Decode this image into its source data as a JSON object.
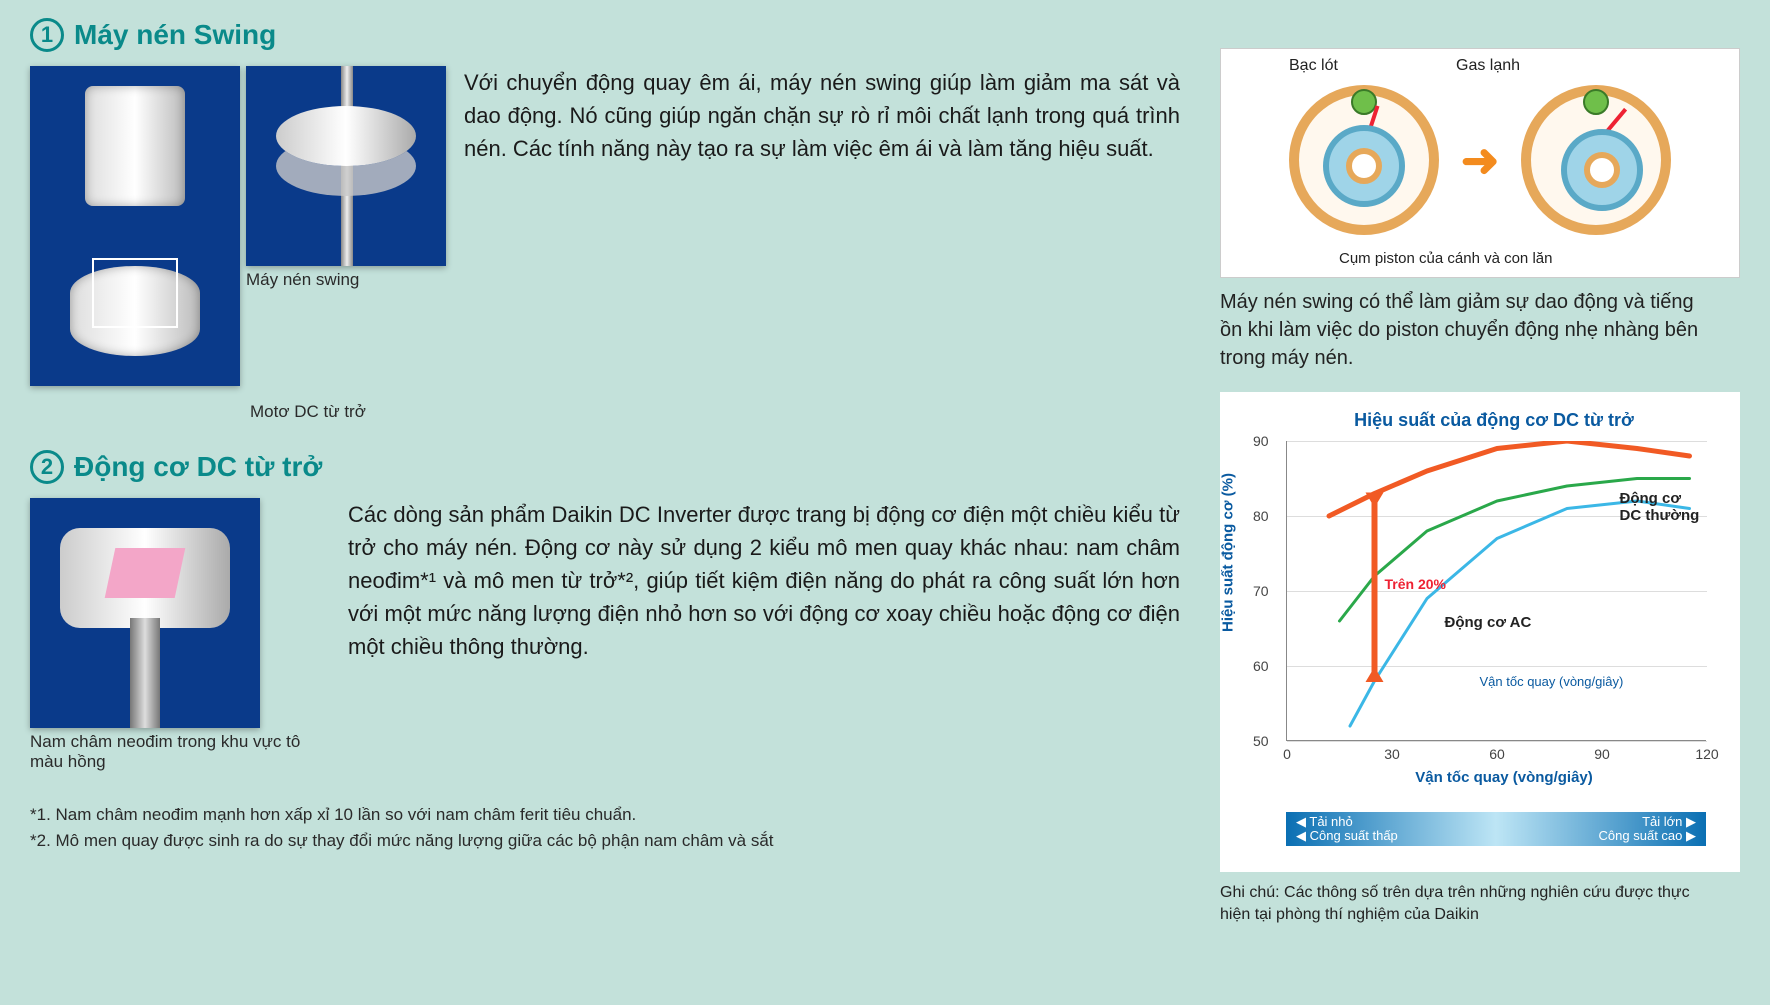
{
  "colors": {
    "page_bg": "#c3e1da",
    "teal": "#0a8a8a",
    "body_text": "#1a1a1a",
    "chart_blue": "#0a5aa0",
    "orange_series": "#f15a24",
    "green_series": "#2aa84a",
    "cyan_series": "#3bb7e6",
    "anno_red": "#e23030",
    "diagram_outer": "#e6a85a",
    "diagram_inner": "#9fd4e8",
    "diagram_bushing": "#6fbf4a"
  },
  "section1": {
    "num": "1",
    "title": "Máy nén Swing",
    "fig_a_label": "Motơ DC từ trở",
    "fig_b_label": "Máy nén swing",
    "desc": "Với chuyển động quay êm ái, máy nén swing giúp làm giảm ma sát và dao động. Nó cũng giúp ngăn chặn sự rò rỉ môi chất lạnh trong quá trình nén. Các tính năng này tạo ra sự làm việc êm ái và làm tăng hiệu suất."
  },
  "section2": {
    "num": "2",
    "title": "Động cơ DC từ trở",
    "fig_caption": "Nam châm neođim trong khu vực tô màu hồng",
    "desc": "Các dòng sản phẩm Daikin DC Inverter được trang bị động cơ điện một chiều kiểu từ trở cho máy nén. Động cơ này sử dụng 2 kiểu mô men quay khác nhau: nam châm neođim*¹ và mô men từ trở*², giúp tiết kiệm điện năng do phát ra công suất lớn hơn với một mức năng lượng điện nhỏ hơn so với động cơ xoay chiều hoặc động cơ điện một chiều thông thường."
  },
  "footnotes": {
    "f1": "*1. Nam châm neođim mạnh hơn xấp xỉ 10 lần so với nam châm ferit tiêu chuẩn.",
    "f2": "*2. Mô men quay được sinh ra do sự thay đổi mức năng lượng giữa các bộ phận nam châm và sắt"
  },
  "swing_diagram": {
    "label_bushing": "Bạc lót",
    "label_gas": "Gas lạnh",
    "label_cum": "Cụm piston của cánh và con lăn",
    "caption": "Máy nén swing có thể làm giảm sự dao động và tiếng ồn khi làm việc do piston chuyển động nhẹ nhàng bên trong máy nén."
  },
  "chart": {
    "title": "Hiệu suất của động cơ DC từ trở",
    "ylabel": "Hiệu suất động cơ (%)",
    "xlabel": "Vận tốc quay (vòng/giây)",
    "speed_note": "Vận tốc quay (vòng/giây)",
    "xlim": [
      0,
      120
    ],
    "ylim": [
      50,
      90
    ],
    "xticks": [
      0,
      30,
      60,
      90,
      120
    ],
    "yticks": [
      50,
      60,
      70,
      80,
      90
    ],
    "series": {
      "dc_reluctance": {
        "label_implicit": "DC từ trở",
        "color": "#f15a24",
        "width": 5,
        "points": [
          [
            12,
            80
          ],
          [
            25,
            83
          ],
          [
            40,
            86
          ],
          [
            60,
            89
          ],
          [
            80,
            90
          ],
          [
            100,
            89
          ],
          [
            115,
            88
          ]
        ]
      },
      "dc_normal": {
        "label": "Động cơ DC thường",
        "color": "#2aa84a",
        "width": 3,
        "points": [
          [
            15,
            66
          ],
          [
            25,
            72
          ],
          [
            40,
            78
          ],
          [
            60,
            82
          ],
          [
            80,
            84
          ],
          [
            100,
            85
          ],
          [
            115,
            85
          ]
        ]
      },
      "ac": {
        "label": "Động cơ AC",
        "color": "#3bb7e6",
        "width": 3,
        "points": [
          [
            18,
            52
          ],
          [
            25,
            58
          ],
          [
            40,
            69
          ],
          [
            60,
            77
          ],
          [
            80,
            81
          ],
          [
            100,
            82
          ],
          [
            115,
            81
          ]
        ]
      }
    },
    "annotation_20": "Trên 20%",
    "legend_bar": {
      "left_top": "◀ Tải nhỏ",
      "left_bot": "◀ Công suất thấp",
      "right_top": "Tải lớn ▶",
      "right_bot": "Công suất cao ▶"
    },
    "note": "Ghi chú: Các thông số trên dựa trên những nghiên cứu được thực hiện tại phòng thí nghiệm của Daikin"
  }
}
